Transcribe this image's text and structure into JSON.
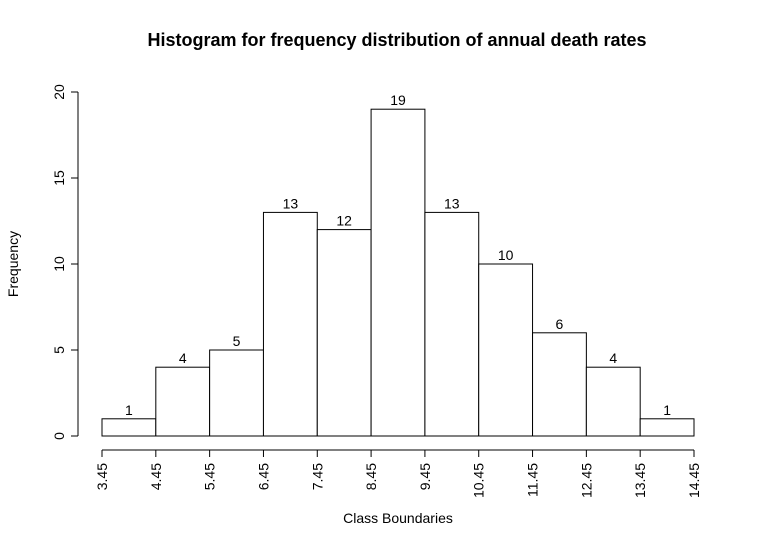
{
  "chart_data": {
    "type": "bar",
    "title": "Histogram for frequency distribution of annual death rates",
    "xlabel": "Class Boundaries",
    "ylabel": "Frequency",
    "boundaries": [
      3.45,
      4.45,
      5.45,
      6.45,
      7.45,
      8.45,
      9.45,
      10.45,
      11.45,
      12.45,
      13.45,
      14.45
    ],
    "x_tick_labels": [
      "3.45",
      "4.45",
      "5.45",
      "6.45",
      "7.45",
      "8.45",
      "9.45",
      "10.45",
      "11.45",
      "12.45",
      "13.45",
      "14.45"
    ],
    "values": [
      1,
      4,
      5,
      13,
      12,
      19,
      13,
      10,
      6,
      4,
      1
    ],
    "value_labels": [
      "1",
      "4",
      "5",
      "13",
      "12",
      "19",
      "13",
      "10",
      "6",
      "4",
      "1"
    ],
    "y_ticks": [
      0,
      5,
      10,
      15,
      20
    ],
    "y_tick_labels": [
      "0",
      "5",
      "10",
      "15",
      "20"
    ],
    "xlim": [
      3.45,
      14.45
    ],
    "ylim": [
      0,
      20
    ],
    "grid": false,
    "legend": "none",
    "bar_fill": "#ffffff",
    "bar_stroke": "#000000"
  }
}
